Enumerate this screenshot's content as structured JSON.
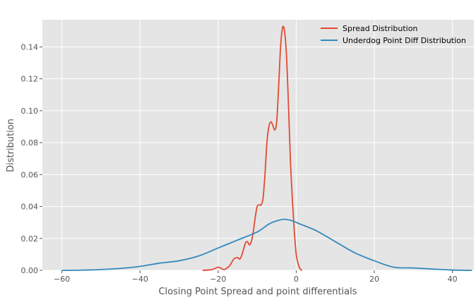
{
  "chart_data": {
    "type": "line",
    "title": "",
    "xlabel": "Closing Point Spread and point differentials",
    "ylabel": "Distribution",
    "xlim": [
      -65,
      45.5
    ],
    "ylim": [
      0,
      0.157
    ],
    "x_ticks": [
      -60,
      -40,
      -20,
      0,
      20,
      40
    ],
    "x_tick_labels": [
      "−60",
      "−40",
      "−20",
      "0",
      "20",
      "40"
    ],
    "y_ticks": [
      0,
      0.02,
      0.04,
      0.06,
      0.08,
      0.1,
      0.12,
      0.14
    ],
    "y_tick_labels": [
      "0.00",
      "0.02",
      "0.04",
      "0.06",
      "0.08",
      "0.10",
      "0.12",
      "0.14"
    ],
    "grid": true,
    "legend_position": "top-right",
    "background_color": "#e5e5e5",
    "series": [
      {
        "name": "Spread Distribution",
        "color": "#e24a33",
        "points": [
          [
            -24,
            0.0
          ],
          [
            -22,
            0.0003
          ],
          [
            -21,
            0.001
          ],
          [
            -20,
            0.002
          ],
          [
            -19,
            0.001
          ],
          [
            -18.5,
            0.0005
          ],
          [
            -18,
            0.001
          ],
          [
            -17,
            0.003
          ],
          [
            -16,
            0.007
          ],
          [
            -15,
            0.008
          ],
          [
            -14.5,
            0.007
          ],
          [
            -14,
            0.009
          ],
          [
            -13.5,
            0.013
          ],
          [
            -13,
            0.017
          ],
          [
            -12.5,
            0.018
          ],
          [
            -12,
            0.016
          ],
          [
            -11.5,
            0.018
          ],
          [
            -11,
            0.024
          ],
          [
            -10.5,
            0.033
          ],
          [
            -10,
            0.04
          ],
          [
            -9.5,
            0.041
          ],
          [
            -9,
            0.041
          ],
          [
            -8.5,
            0.045
          ],
          [
            -8,
            0.06
          ],
          [
            -7.5,
            0.08
          ],
          [
            -7,
            0.09
          ],
          [
            -6.5,
            0.093
          ],
          [
            -6,
            0.091
          ],
          [
            -5.5,
            0.088
          ],
          [
            -5,
            0.093
          ],
          [
            -4.5,
            0.115
          ],
          [
            -4,
            0.14
          ],
          [
            -3.5,
            0.152
          ],
          [
            -3,
            0.15
          ],
          [
            -2.5,
            0.135
          ],
          [
            -2,
            0.105
          ],
          [
            -1.5,
            0.07
          ],
          [
            -1,
            0.045
          ],
          [
            -0.5,
            0.025
          ],
          [
            0,
            0.01
          ],
          [
            0.5,
            0.004
          ],
          [
            1,
            0.001
          ],
          [
            1.5,
            0.0
          ]
        ]
      },
      {
        "name": "Underdog Point Diff Distribution",
        "color": "#348abd",
        "points": [
          [
            -60,
            0.0
          ],
          [
            -55,
            0.0001
          ],
          [
            -50,
            0.0005
          ],
          [
            -45,
            0.0012
          ],
          [
            -40,
            0.0025
          ],
          [
            -35,
            0.0045
          ],
          [
            -30,
            0.006
          ],
          [
            -25,
            0.009
          ],
          [
            -20,
            0.014
          ],
          [
            -15,
            0.019
          ],
          [
            -10,
            0.024
          ],
          [
            -7,
            0.029
          ],
          [
            -5,
            0.031
          ],
          [
            -3,
            0.032
          ],
          [
            -1,
            0.031
          ],
          [
            1,
            0.029
          ],
          [
            5,
            0.025
          ],
          [
            10,
            0.018
          ],
          [
            15,
            0.011
          ],
          [
            20,
            0.006
          ],
          [
            25,
            0.002
          ],
          [
            30,
            0.0015
          ],
          [
            35,
            0.0008
          ],
          [
            40,
            0.0002
          ],
          [
            45,
            0.0
          ]
        ]
      }
    ]
  }
}
